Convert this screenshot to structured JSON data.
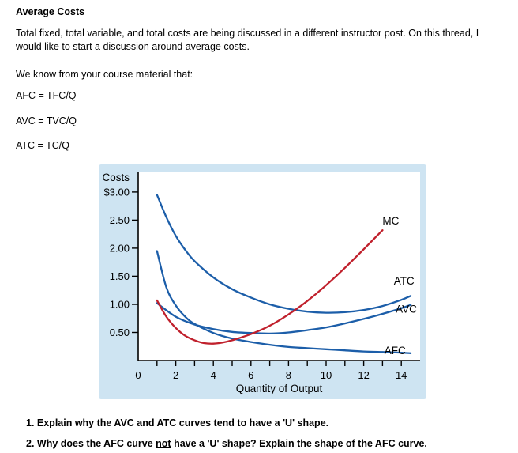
{
  "doc": {
    "title": "Average Costs",
    "paragraph1": "Total fixed, total variable, and total costs are being discussed in a different instructor post. On this thread, I would like to start a discussion around average costs.",
    "paragraph2": "We know from your course material that:",
    "formulas": [
      "AFC = TFC/Q",
      "AVC = TVC/Q",
      "ATC = TC/Q"
    ],
    "questions": {
      "q1": "1. Explain why the AVC and ATC curves tend to have a 'U' shape.",
      "q2_pre": "2. Why does the AFC curve ",
      "q2_underlined": "not",
      "q2_post": " have a 'U' shape? Explain the shape of the AFC curve."
    }
  },
  "chart_data": {
    "type": "line",
    "title": "",
    "ylabel": "Costs",
    "xlabel": "Quantity of Output",
    "xlim": [
      0,
      15
    ],
    "ylim": [
      0,
      3.35
    ],
    "grid": false,
    "legend_position": "inline-labels",
    "panel_color": "#cee4f2",
    "axis_color": "#000000",
    "y_ticks": [
      0.5,
      1.0,
      1.5,
      2.0,
      2.5,
      3.0
    ],
    "y_tick_labels": [
      "0.50",
      "1.00",
      "1.50",
      "2.00",
      "2.50",
      "$3.00"
    ],
    "x_ticks": [
      1,
      2,
      3,
      4,
      5,
      6,
      7,
      8,
      9,
      10,
      11,
      12,
      13,
      14
    ],
    "x_tick_label_positions": [
      0,
      2,
      4,
      6,
      8,
      10,
      12,
      14
    ],
    "x_tick_labels": [
      "0",
      "2",
      "4",
      "6",
      "8",
      "10",
      "12",
      "14"
    ],
    "series": [
      {
        "name": "ATC",
        "color": "#1c5ea9",
        "label_x": 13.6,
        "label_y": 1.35,
        "x": [
          1,
          1.5,
          2,
          2.5,
          3,
          4,
          5,
          6,
          7,
          8,
          9,
          10,
          11,
          12,
          13,
          14,
          14.5
        ],
        "y": [
          2.95,
          2.55,
          2.22,
          1.97,
          1.77,
          1.48,
          1.27,
          1.12,
          1.0,
          0.92,
          0.87,
          0.85,
          0.86,
          0.9,
          0.97,
          1.08,
          1.15
        ]
      },
      {
        "name": "AVC",
        "color": "#1c5ea9",
        "label_x": 13.7,
        "label_y": 0.85,
        "x": [
          1,
          2,
          3,
          4,
          5,
          6,
          7,
          8,
          9,
          10,
          11,
          12,
          13,
          14,
          14.5
        ],
        "y": [
          1.02,
          0.78,
          0.64,
          0.56,
          0.51,
          0.49,
          0.48,
          0.5,
          0.54,
          0.59,
          0.66,
          0.74,
          0.83,
          0.93,
          0.99
        ]
      },
      {
        "name": "AFC",
        "color": "#1c5ea9",
        "label_x": 13.1,
        "label_y": 0.11,
        "x": [
          1,
          1.5,
          2,
          2.5,
          3,
          4,
          5,
          6,
          7,
          8,
          9,
          10,
          11,
          12,
          13,
          14,
          14.5
        ],
        "y": [
          1.95,
          1.3,
          0.98,
          0.78,
          0.65,
          0.49,
          0.39,
          0.33,
          0.28,
          0.24,
          0.22,
          0.2,
          0.18,
          0.16,
          0.15,
          0.14,
          0.13
        ]
      },
      {
        "name": "MC",
        "color": "#c0202c",
        "label_x": 13.0,
        "label_y": 2.42,
        "x": [
          1,
          1.5,
          2,
          2.5,
          3,
          3.5,
          4,
          4.5,
          5,
          6,
          7,
          8,
          9,
          10,
          11,
          12,
          13
        ],
        "y": [
          1.07,
          0.78,
          0.58,
          0.44,
          0.36,
          0.31,
          0.3,
          0.32,
          0.36,
          0.47,
          0.62,
          0.82,
          1.06,
          1.34,
          1.65,
          1.98,
          2.32
        ]
      }
    ]
  }
}
